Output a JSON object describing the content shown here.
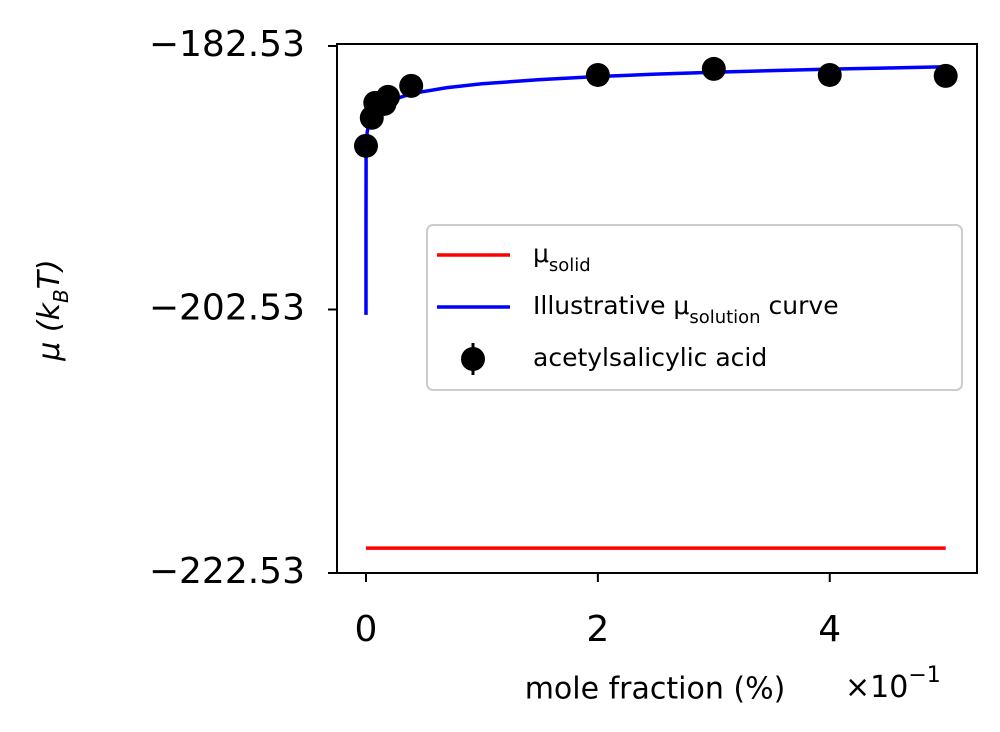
{
  "chart_data": {
    "type": "line",
    "xlabel": "mole fraction (%)",
    "x_offset": {
      "base": "×10",
      "exponent": "−1"
    },
    "ylabel": [
      {
        "text": "μ (k"
      },
      {
        "text": "B",
        "sub": true
      },
      {
        "text": "T)"
      }
    ],
    "xlim": [
      -0.25,
      5.27
    ],
    "ylim": [
      -222.53,
      -182.38
    ],
    "xticks": [
      0,
      2,
      4
    ],
    "yticks": [
      {
        "value": -182.53,
        "label": "−182.53"
      },
      {
        "value": -202.53,
        "label": "−202.53"
      },
      {
        "value": -222.53,
        "label": "−222.53"
      }
    ],
    "legend": "center right",
    "series": [
      {
        "name": [
          {
            "text": "μ"
          },
          {
            "text": "solid",
            "sub": true
          }
        ],
        "type": "line",
        "color": "#ff0000",
        "x": [
          0,
          5
        ],
        "values": [
          -220.64,
          -220.64
        ]
      },
      {
        "name": [
          {
            "text": "Illustrative μ"
          },
          {
            "text": "solution",
            "sub": true
          },
          {
            "text": " curve"
          }
        ],
        "type": "line",
        "color": "#0000ff",
        "x": [
          3e-10,
          1e-06,
          0.001,
          0.01,
          0.03,
          0.05,
          0.1,
          0.2,
          0.4,
          0.7,
          1,
          1.5,
          2,
          2.5,
          3,
          3.5,
          4,
          4.5,
          5
        ],
        "values": [
          -202.94,
          -196.46,
          -190.93,
          -189.09,
          -188.21,
          -187.8,
          -187.24,
          -186.69,
          -186.13,
          -185.69,
          -185.4,
          -185.08,
          -184.85,
          -184.67,
          -184.52,
          -184.4,
          -184.29,
          -184.2,
          -184.11
        ]
      },
      {
        "name": [
          {
            "text": "acetylsalicylic acid"
          }
        ],
        "type": "scatter",
        "color": "#000000",
        "x": [
          0,
          0.05,
          0.08,
          0.16,
          0.19,
          0.39,
          2,
          3,
          4,
          5
        ],
        "values": [
          -190.11,
          -187.98,
          -186.85,
          -186.92,
          -186.39,
          -185.56,
          -184.73,
          -184.27,
          -184.73,
          -184.8
        ]
      }
    ]
  }
}
